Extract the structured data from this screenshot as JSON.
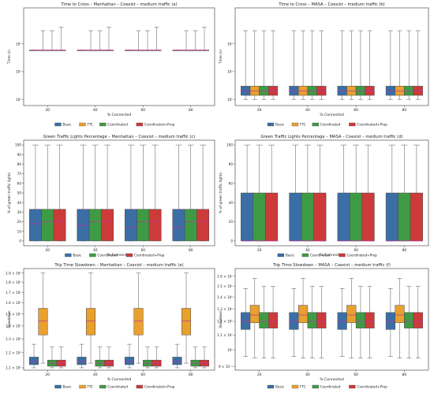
{
  "colors": {
    "Basic": "#3a6ea5",
    "FTC": "#e8a02f",
    "Coordinated": "#3f9a44",
    "Coordinated+Prop": "#cc3a3a",
    "median": "#c030a0",
    "box_outline": "#4a4a4a"
  },
  "chart_data": [
    {
      "type": "box",
      "title": "Time to Cross – Manhattan – Coexist – medium traffic (a)",
      "xlabel": "% Connected",
      "ylabel": "Time (s)",
      "yscale": "log",
      "ylim": [
        0.6,
        2000
      ],
      "yticks": [
        1,
        10,
        100
      ],
      "ytick_labels": [
        "10⁰",
        "10¹",
        "10²"
      ],
      "categories": [
        "20",
        "40",
        "60",
        "80"
      ],
      "legend": [
        "Basic",
        "FTC",
        "Coordinated",
        "Coordinated+Prop"
      ],
      "series": [
        {
          "name": "Basic",
          "boxes": [
            [
              60,
              60,
              60,
              60,
              60
            ],
            [
              60,
              60,
              60,
              60,
              60
            ],
            [
              60,
              60,
              60,
              60,
              60
            ],
            [
              60,
              60,
              60,
              60,
              60
            ]
          ]
        },
        {
          "name": "FTC",
          "boxes": [
            [
              60,
              60,
              60,
              60,
              300
            ],
            [
              60,
              60,
              60,
              60,
              300
            ],
            [
              60,
              60,
              60,
              60,
              300
            ],
            [
              60,
              60,
              60,
              60,
              300
            ]
          ]
        },
        {
          "name": "Coordinated",
          "boxes": [
            [
              60,
              60,
              60,
              60,
              300
            ],
            [
              60,
              60,
              60,
              60,
              300
            ],
            [
              60,
              60,
              60,
              60,
              300
            ],
            [
              60,
              60,
              60,
              60,
              300
            ]
          ]
        },
        {
          "name": "Coordinated+Prop",
          "boxes": [
            [
              60,
              60,
              60,
              60,
              400
            ],
            [
              60,
              60,
              60,
              60,
              400
            ],
            [
              60,
              60,
              60,
              60,
              400
            ],
            [
              60,
              60,
              60,
              60,
              400
            ]
          ]
        }
      ]
    },
    {
      "type": "box",
      "title": "Time to Cross – MASA – Coexist – medium traffic (b)",
      "xlabel": "% Connected",
      "ylabel": "Time (s)",
      "yscale": "log",
      "ylim": [
        0.6,
        2000
      ],
      "yticks": [
        1,
        10,
        100
      ],
      "ytick_labels": [
        "10⁰",
        "10¹",
        "10²"
      ],
      "categories": [
        "20",
        "40",
        "60",
        "80"
      ],
      "legend": [
        "Basic",
        "FTC",
        "Coordinated",
        "Coordinated+Prop"
      ],
      "series": [
        {
          "name": "Basic",
          "boxes": [
            [
              1,
              1.4,
              2,
              3,
              300
            ],
            [
              1,
              1.4,
              2,
              3,
              300
            ],
            [
              1,
              1.4,
              2,
              3,
              300
            ],
            [
              1,
              1.4,
              2,
              3,
              300
            ]
          ]
        },
        {
          "name": "FTC",
          "boxes": [
            [
              1,
              1.4,
              2,
              3,
              300
            ],
            [
              1,
              1.4,
              2,
              3,
              300
            ],
            [
              1,
              1.4,
              2,
              3,
              300
            ],
            [
              1,
              1.4,
              2,
              3,
              300
            ]
          ]
        },
        {
          "name": "Coordinated",
          "boxes": [
            [
              1,
              1.4,
              2,
              3,
              300
            ],
            [
              1,
              1.4,
              2,
              3,
              300
            ],
            [
              1,
              1.4,
              2,
              3,
              300
            ],
            [
              1,
              1.4,
              2,
              3,
              300
            ]
          ]
        },
        {
          "name": "Coordinated+Prop",
          "boxes": [
            [
              1,
              1.4,
              2,
              3,
              300
            ],
            [
              1,
              1.4,
              2,
              3,
              300
            ],
            [
              1,
              1.4,
              2,
              3,
              300
            ],
            [
              1,
              1.4,
              2,
              3,
              300
            ]
          ]
        }
      ]
    },
    {
      "type": "box",
      "title": "Green Traffic Lights Percentage – Manhattan – Coexist – medium traffic (c)",
      "xlabel": "% Connected",
      "ylabel": "% of green traffic lights",
      "yscale": "linear",
      "ylim": [
        -5,
        105
      ],
      "yticks": [
        0,
        10,
        20,
        30,
        40,
        50,
        60,
        70,
        80,
        90,
        100
      ],
      "ytick_labels": [
        "0",
        "10",
        "20",
        "30",
        "40",
        "50",
        "60",
        "70",
        "80",
        "90",
        "100"
      ],
      "categories": [
        "20",
        "40",
        "60",
        "80"
      ],
      "legend": [
        "Basic",
        "Coordinated",
        "Coordinated+Prop"
      ],
      "series": [
        {
          "name": "Basic",
          "boxes": [
            [
              0,
              0,
              18,
              33,
              100
            ],
            [
              0,
              0,
              16,
              33,
              100
            ],
            [
              0,
              0,
              14,
              33,
              100
            ],
            [
              0,
              0,
              14,
              33,
              100
            ]
          ]
        },
        {
          "name": "Coordinated",
          "boxes": [
            [
              0,
              0,
              20,
              33,
              100
            ],
            [
              0,
              0,
              20,
              33,
              100
            ],
            [
              0,
              0,
              20,
              33,
              100
            ],
            [
              0,
              0,
              20,
              33,
              100
            ]
          ]
        },
        {
          "name": "Coordinated+Prop",
          "boxes": [
            [
              0,
              0,
              20,
              33,
              100
            ],
            [
              0,
              0,
              20,
              33,
              100
            ],
            [
              0,
              0,
              20,
              33,
              100
            ],
            [
              0,
              0,
              20,
              33,
              100
            ]
          ]
        }
      ]
    },
    {
      "type": "box",
      "title": "Green Traffic Lights Percentage – MASA – Coexist – medium traffic (d)",
      "xlabel": "% Connected",
      "ylabel": "% of green traffic lights",
      "yscale": "linear",
      "ylim": [
        -5,
        105
      ],
      "yticks": [
        0,
        20,
        40,
        60,
        80,
        100
      ],
      "ytick_labels": [
        "0",
        "20",
        "40",
        "60",
        "80",
        "100"
      ],
      "categories": [
        "20",
        "40",
        "60",
        "80"
      ],
      "legend": [
        "Basic",
        "Coordinated",
        "Coordinated+Prop"
      ],
      "series": [
        {
          "name": "Basic",
          "boxes": [
            [
              0,
              0,
              0,
              50,
              100
            ],
            [
              0,
              0,
              0,
              50,
              100
            ],
            [
              0,
              0,
              0,
              50,
              100
            ],
            [
              0,
              0,
              0,
              50,
              100
            ]
          ]
        },
        {
          "name": "Coordinated",
          "boxes": [
            [
              0,
              0,
              0,
              50,
              100
            ],
            [
              0,
              0,
              0,
              50,
              100
            ],
            [
              0,
              0,
              0,
              50,
              100
            ],
            [
              0,
              0,
              0,
              50,
              100
            ]
          ]
        },
        {
          "name": "Coordinated+Prop",
          "boxes": [
            [
              0,
              0,
              0,
              50,
              100
            ],
            [
              0,
              0,
              0,
              50,
              100
            ],
            [
              0,
              0,
              0,
              50,
              100
            ],
            [
              0,
              0,
              0,
              50,
              100
            ]
          ]
        }
      ]
    },
    {
      "type": "box",
      "title": "Trip Time Slowdown – Manhattan – Coexist – medium traffic (e)",
      "xlabel": "% Connected",
      "ylabel": "Slowdown",
      "yscale": "log",
      "ylim": [
        1.085,
        1.95
      ],
      "yticks": [
        1.1,
        1.2,
        1.3,
        1.4,
        1.5,
        1.6,
        1.7,
        1.8,
        1.9
      ],
      "ytick_labels": [
        "1.1 × 10⁰",
        "1.2 × 10⁰",
        "1.3 × 10⁰",
        "1.4 × 10⁰",
        "1.5 × 10⁰",
        "1.6 × 10⁰",
        "1.7 × 10⁰",
        "1.8 × 10⁰",
        "1.9 × 10⁰"
      ],
      "categories": [
        "20",
        "40",
        "60",
        "80"
      ],
      "legend": [
        "Basic",
        "FTC",
        "Coordinated",
        "Coordinated+Prop"
      ],
      "series": [
        {
          "name": "Basic",
          "boxes": [
            [
              1.1,
              1.12,
              1.14,
              1.17,
              1.26
            ],
            [
              1.1,
              1.12,
              1.14,
              1.17,
              1.26
            ],
            [
              1.1,
              1.12,
              1.14,
              1.17,
              1.26
            ],
            [
              1.1,
              1.12,
              1.14,
              1.17,
              1.26
            ]
          ]
        },
        {
          "name": "FTC",
          "boxes": [
            [
              1.13,
              1.33,
              1.44,
              1.55,
              1.9
            ],
            [
              1.13,
              1.33,
              1.44,
              1.55,
              1.9
            ],
            [
              1.13,
              1.33,
              1.44,
              1.55,
              1.9
            ],
            [
              1.13,
              1.33,
              1.44,
              1.55,
              1.9
            ]
          ]
        },
        {
          "name": "Coordinated",
          "boxes": [
            [
              1.1,
              1.11,
              1.13,
              1.15,
              1.24
            ],
            [
              1.1,
              1.11,
              1.13,
              1.15,
              1.24
            ],
            [
              1.1,
              1.11,
              1.13,
              1.15,
              1.24
            ],
            [
              1.1,
              1.11,
              1.13,
              1.15,
              1.24
            ]
          ]
        },
        {
          "name": "Coordinated+Prop",
          "boxes": [
            [
              1.1,
              1.11,
              1.13,
              1.15,
              1.24
            ],
            [
              1.1,
              1.11,
              1.13,
              1.15,
              1.24
            ],
            [
              1.1,
              1.11,
              1.13,
              1.15,
              1.24
            ],
            [
              1.1,
              1.11,
              1.13,
              1.15,
              1.24
            ]
          ]
        }
      ]
    },
    {
      "type": "box",
      "title": "Trip Time Slowdown – MASA – Coexist – medium traffic (f)",
      "xlabel": "% Connected",
      "ylabel": "Slowdown",
      "yscale": "log",
      "ylim": [
        0.88,
        1.68
      ],
      "yticks": [
        0.9,
        1.0,
        1.1,
        1.2,
        1.3,
        1.4,
        1.5,
        1.6
      ],
      "ytick_labels": [
        "9 × 10⁻¹",
        "10⁰",
        "1.1 × 10⁰",
        "1.2 × 10⁰",
        "1.3 × 10⁰",
        "1.4 × 10⁰",
        "1.5 × 10⁰",
        "1.6 × 10⁰"
      ],
      "categories": [
        "20",
        "40",
        "60",
        "80"
      ],
      "legend": [
        "Basic",
        "FTC",
        "Coordinated",
        "Coordinated+Prop"
      ],
      "series": [
        {
          "name": "Basic",
          "boxes": [
            [
              0.96,
              1.14,
              1.2,
              1.27,
              1.48
            ],
            [
              0.96,
              1.14,
              1.2,
              1.27,
              1.48
            ],
            [
              0.96,
              1.14,
              1.2,
              1.27,
              1.48
            ],
            [
              0.96,
              1.14,
              1.2,
              1.27,
              1.48
            ]
          ]
        },
        {
          "name": "FTC",
          "boxes": [
            [
              0.95,
              1.19,
              1.25,
              1.33,
              1.58
            ],
            [
              0.95,
              1.19,
              1.25,
              1.33,
              1.58
            ],
            [
              0.95,
              1.19,
              1.25,
              1.33,
              1.58
            ],
            [
              0.95,
              1.19,
              1.25,
              1.33,
              1.58
            ]
          ]
        },
        {
          "name": "Coordinated",
          "boxes": [
            [
              0.95,
              1.15,
              1.2,
              1.27,
              1.5
            ],
            [
              0.95,
              1.15,
              1.2,
              1.27,
              1.5
            ],
            [
              0.95,
              1.15,
              1.2,
              1.27,
              1.5
            ],
            [
              0.95,
              1.15,
              1.2,
              1.27,
              1.5
            ]
          ]
        },
        {
          "name": "Coordinated+Prop",
          "boxes": [
            [
              0.95,
              1.15,
              1.2,
              1.27,
              1.5
            ],
            [
              0.95,
              1.15,
              1.2,
              1.27,
              1.5
            ],
            [
              0.95,
              1.15,
              1.2,
              1.27,
              1.5
            ],
            [
              0.95,
              1.15,
              1.2,
              1.27,
              1.5
            ]
          ]
        }
      ]
    }
  ]
}
